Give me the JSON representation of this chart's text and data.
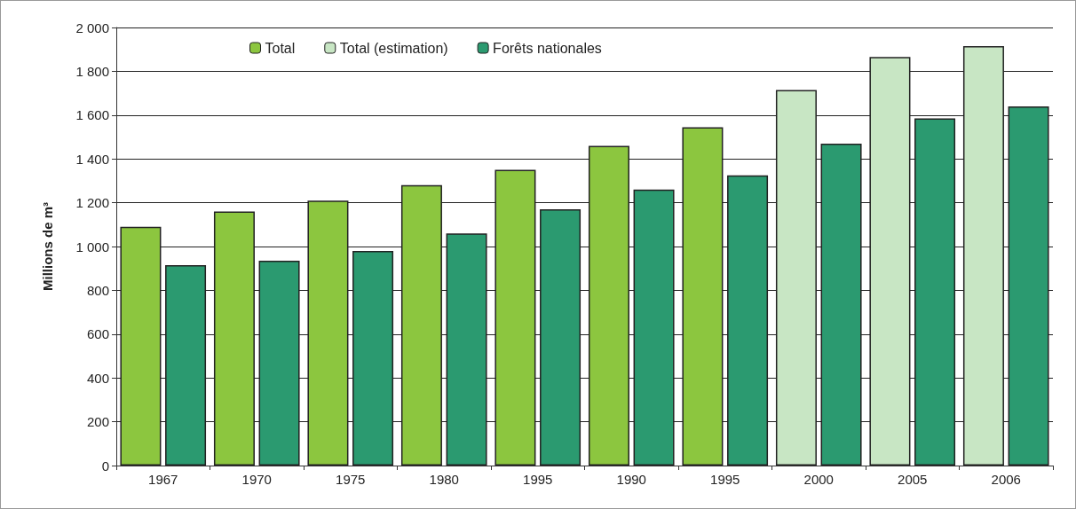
{
  "chart_data": {
    "type": "bar",
    "ylabel": "Millions de m³",
    "categories": [
      "1967",
      "1970",
      "1975",
      "1980",
      "1995",
      "1990",
      "1995",
      "2000",
      "2005",
      "2006"
    ],
    "series": [
      {
        "name": "Total",
        "color": "#8cc63f",
        "values": [
          1090,
          1160,
          1210,
          1280,
          1350,
          1460,
          1545,
          null,
          null,
          null
        ]
      },
      {
        "name": "Total (estimation)",
        "color": "#c8e6c4",
        "values": [
          null,
          null,
          null,
          null,
          null,
          null,
          null,
          1715,
          1865,
          1915
        ]
      },
      {
        "name": "Forêts nationales",
        "color": "#2b9a70",
        "values": [
          915,
          935,
          980,
          1060,
          1170,
          1260,
          1325,
          1470,
          1585,
          1640
        ]
      }
    ],
    "ylim": [
      0,
      2000
    ],
    "yticks": [
      0,
      200,
      400,
      600,
      800,
      {
        "value": 1000,
        "label": "1 000"
      },
      {
        "value": 1200,
        "label": "1 200"
      },
      {
        "value": 1400,
        "label": "1 400"
      },
      {
        "value": 1600,
        "label": "1 600"
      },
      {
        "value": 1800,
        "label": "1 800"
      },
      {
        "value": 2000,
        "label": "2 000"
      }
    ],
    "grid": "y",
    "legend": "top left"
  }
}
